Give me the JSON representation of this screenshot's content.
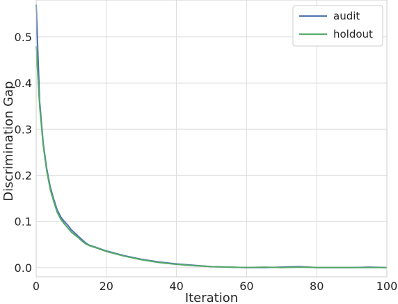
{
  "chart_data": {
    "type": "line",
    "title": "",
    "xlabel": "Iteration",
    "ylabel": "Discrimination Gap",
    "xlim": [
      0,
      100
    ],
    "ylim": [
      -0.02,
      0.58
    ],
    "xticks": [
      0,
      20,
      40,
      60,
      80,
      100
    ],
    "yticks": [
      0.0,
      0.1,
      0.2,
      0.3,
      0.4,
      0.5
    ],
    "xtick_labels": [
      "0",
      "20",
      "40",
      "60",
      "80",
      "100"
    ],
    "ytick_labels": [
      "0.0",
      "0.1",
      "0.2",
      "0.3",
      "0.4",
      "0.5"
    ],
    "grid": true,
    "legend_position": "top-right",
    "series": [
      {
        "name": "audit",
        "color": "#4c72b0",
        "x": [
          0,
          1,
          2,
          3,
          4,
          5,
          6,
          7,
          8,
          9,
          10,
          11,
          12,
          13,
          14,
          15,
          17,
          20,
          25,
          30,
          35,
          40,
          45,
          50,
          55,
          60,
          65,
          70,
          75,
          80,
          85,
          90,
          95,
          100
        ],
        "y": [
          0.57,
          0.36,
          0.27,
          0.215,
          0.175,
          0.148,
          0.125,
          0.11,
          0.1,
          0.092,
          0.082,
          0.075,
          0.068,
          0.061,
          0.054,
          0.049,
          0.044,
          0.036,
          0.026,
          0.018,
          0.012,
          0.008,
          0.005,
          0.002,
          0.001,
          0.0,
          0.0,
          0.001,
          0.002,
          0.0,
          0.0,
          0.0,
          0.001,
          0.0
        ]
      },
      {
        "name": "holdout",
        "color": "#55a868",
        "x": [
          0,
          1,
          2,
          3,
          4,
          5,
          6,
          7,
          8,
          9,
          10,
          11,
          12,
          13,
          14,
          15,
          17,
          20,
          25,
          30,
          35,
          40,
          45,
          50,
          55,
          60,
          65,
          70,
          75,
          80,
          85,
          90,
          95,
          100
        ],
        "y": [
          0.48,
          0.35,
          0.265,
          0.21,
          0.17,
          0.143,
          0.12,
          0.105,
          0.095,
          0.086,
          0.077,
          0.071,
          0.065,
          0.058,
          0.052,
          0.048,
          0.043,
          0.035,
          0.025,
          0.017,
          0.011,
          0.007,
          0.004,
          0.002,
          0.001,
          0.0,
          0.001,
          0.0,
          0.001,
          0.0,
          0.0,
          0.0,
          0.0,
          0.0
        ]
      }
    ]
  }
}
